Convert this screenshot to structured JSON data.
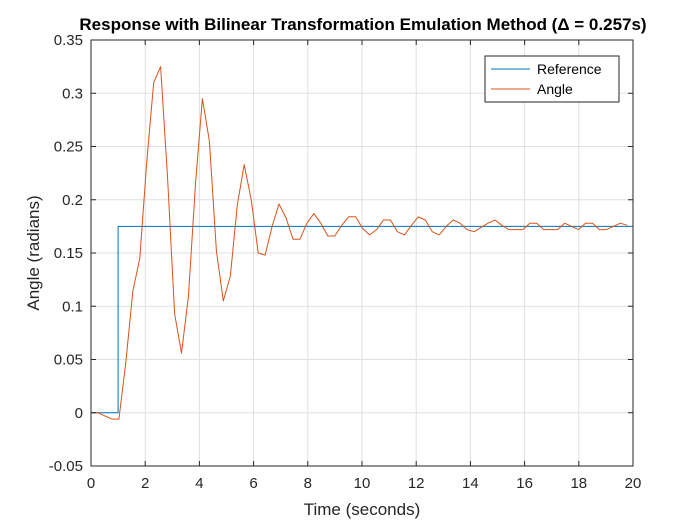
{
  "chart_data": {
    "type": "line",
    "title": "Response with Bilinear Transformation Emulation Method (Δ = 0.257s)",
    "xlabel": "Time (seconds)",
    "ylabel": "Angle (radians)",
    "xlim": [
      0,
      20
    ],
    "ylim": [
      -0.05,
      0.35
    ],
    "xticks": [
      "0",
      "2",
      "4",
      "6",
      "8",
      "10",
      "12",
      "14",
      "16",
      "18",
      "20"
    ],
    "yticks": [
      "-0.05",
      "0",
      "0.05",
      "0.1",
      "0.15",
      "0.2",
      "0.25",
      "0.3",
      "0.35"
    ],
    "grid": true,
    "legend_position": "top-right",
    "series": [
      {
        "name": "Reference",
        "color": "#0072BD",
        "x": [
          0,
          1,
          1,
          20
        ],
        "y": [
          0,
          0,
          0.175,
          0.175
        ]
      },
      {
        "name": "Angle",
        "color": "#D95319",
        "x": [
          0,
          0.257,
          0.514,
          0.771,
          1.028,
          1.285,
          1.542,
          1.799,
          2.056,
          2.313,
          2.57,
          2.827,
          3.084,
          3.341,
          3.598,
          3.855,
          4.112,
          4.369,
          4.626,
          4.883,
          5.14,
          5.397,
          5.654,
          5.911,
          6.168,
          6.425,
          6.682,
          6.939,
          7.196,
          7.453,
          7.71,
          7.967,
          8.224,
          8.481,
          8.738,
          8.995,
          9.252,
          9.509,
          9.766,
          10.023,
          10.28,
          10.537,
          10.794,
          11.051,
          11.308,
          11.565,
          11.822,
          12.079,
          12.336,
          12.593,
          12.85,
          13.107,
          13.364,
          13.621,
          13.878,
          14.135,
          14.392,
          14.649,
          14.906,
          15.163,
          15.42,
          15.677,
          15.934,
          16.191,
          16.448,
          16.705,
          16.962,
          17.219,
          17.476,
          17.733,
          17.99,
          18.247,
          18.504,
          18.761,
          19.018,
          19.275,
          19.532,
          19.789
        ],
        "y": [
          0,
          0,
          -0.003,
          -0.006,
          -0.006,
          0.047,
          0.114,
          0.145,
          0.235,
          0.31,
          0.325,
          0.22,
          0.093,
          0.056,
          0.11,
          0.215,
          0.295,
          0.255,
          0.152,
          0.105,
          0.128,
          0.195,
          0.233,
          0.2,
          0.15,
          0.148,
          0.175,
          0.196,
          0.183,
          0.163,
          0.163,
          0.178,
          0.187,
          0.178,
          0.166,
          0.166,
          0.176,
          0.184,
          0.184,
          0.173,
          0.167,
          0.172,
          0.181,
          0.181,
          0.17,
          0.167,
          0.176,
          0.184,
          0.181,
          0.17,
          0.167,
          0.175,
          0.181,
          0.178,
          0.172,
          0.17,
          0.174,
          0.178,
          0.181,
          0.176,
          0.172,
          0.172,
          0.172,
          0.178,
          0.178,
          0.172,
          0.172,
          0.172,
          0.178,
          0.175,
          0.172,
          0.178,
          0.178,
          0.172,
          0.172,
          0.175,
          0.178,
          0.176
        ]
      }
    ]
  }
}
